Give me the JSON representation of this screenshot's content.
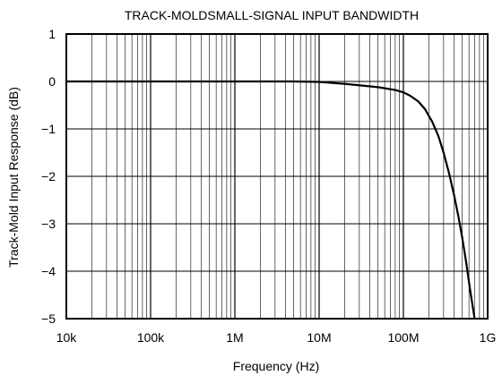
{
  "chart_data": {
    "type": "line",
    "title": "TRACK-MOLDSMALL-SIGNAL INPUT BANDWIDTH",
    "xlabel": "Frequency (Hz)",
    "ylabel": "Track-Mold Input Response (dB)",
    "x_scale": "log",
    "xlim": [
      10000,
      1000000000
    ],
    "ylim": [
      -5,
      1
    ],
    "grid": true,
    "x_ticks": [
      {
        "value": 10000,
        "label": "10k"
      },
      {
        "value": 100000,
        "label": "100k"
      },
      {
        "value": 1000000,
        "label": "1M"
      },
      {
        "value": 10000000,
        "label": "10M"
      },
      {
        "value": 100000000,
        "label": "100M"
      },
      {
        "value": 1000000000,
        "label": "1G"
      }
    ],
    "y_ticks": [
      {
        "value": 1,
        "label": "1"
      },
      {
        "value": 0,
        "label": "0"
      },
      {
        "value": -1,
        "label": "−1"
      },
      {
        "value": -2,
        "label": "−2"
      },
      {
        "value": -3,
        "label": "−3"
      },
      {
        "value": -4,
        "label": "−4"
      },
      {
        "value": -5,
        "label": "−5"
      }
    ],
    "series": [
      {
        "color": "#000000",
        "x": [
          10000,
          1000000,
          5000000,
          10000000,
          20000000,
          50000000,
          80000000,
          100000000,
          120000000,
          150000000,
          180000000,
          220000000,
          260000000,
          300000000,
          350000000,
          400000000,
          450000000,
          500000000,
          560000000,
          620000000,
          700000000
        ],
        "y": [
          0,
          0,
          0,
          -0.01,
          -0.05,
          -0.12,
          -0.18,
          -0.23,
          -0.3,
          -0.42,
          -0.58,
          -0.85,
          -1.15,
          -1.5,
          -1.95,
          -2.4,
          -2.85,
          -3.3,
          -3.85,
          -4.4,
          -5.0
        ]
      }
    ]
  }
}
